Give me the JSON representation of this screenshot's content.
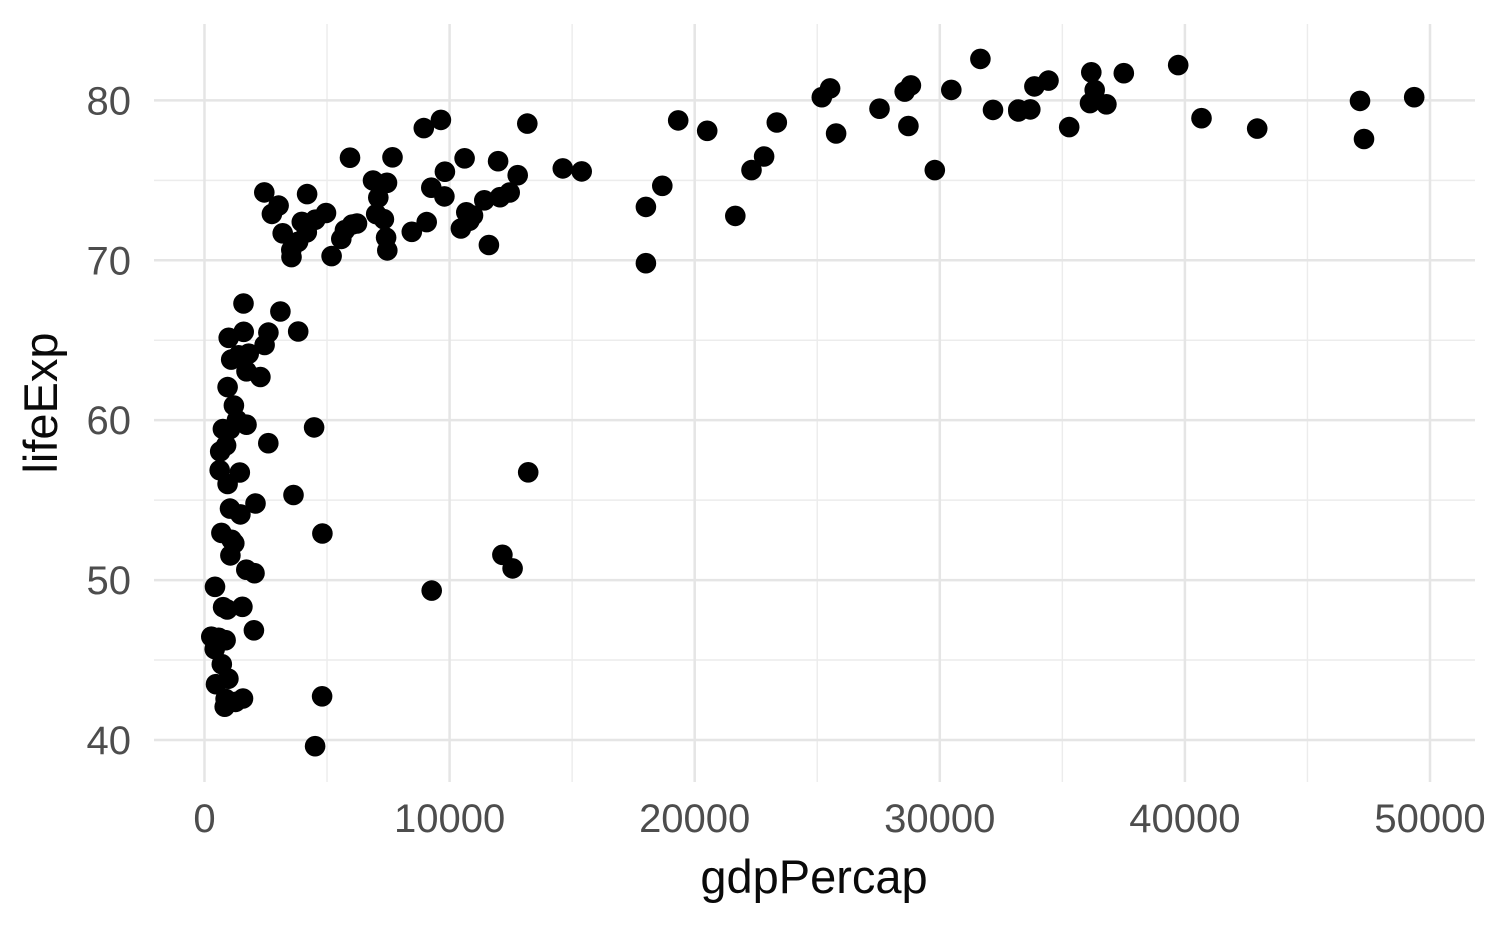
{
  "chart_data": {
    "type": "scatter",
    "title": "",
    "xlabel": "gdpPercap",
    "ylabel": "lifeExp",
    "legend_position": "none",
    "background": "#FFFFFF",
    "point_color": "#000000",
    "point_radius_px": 10.3,
    "grid_major_color": "#E5E5E5",
    "grid_minor_color": "#ECECEC",
    "tick_label_color": "#4D4D4D",
    "axis_title_color": "#0A0A0A",
    "x_ticks": [
      0,
      10000,
      20000,
      30000,
      40000,
      50000
    ],
    "x_tick_labels": [
      "0",
      "10000",
      "20000",
      "30000",
      "40000",
      "50000"
    ],
    "y_ticks": [
      40,
      50,
      60,
      70,
      80
    ],
    "y_tick_labels": [
      "40",
      "50",
      "60",
      "70",
      "80"
    ],
    "x_minor_ticks": [
      5000,
      15000,
      25000,
      35000,
      45000
    ],
    "y_minor_ticks": [
      45,
      55,
      65,
      75
    ],
    "xlim": [
      -2060,
      51836
    ],
    "ylim": [
      37.37,
      84.78
    ],
    "grid": "major and minor gridlines, no axis lines, no tick marks",
    "points": [
      [
        974.6,
        43.83
      ],
      [
        5937.0,
        76.42
      ],
      [
        6223.4,
        72.3
      ],
      [
        4797.2,
        42.73
      ],
      [
        12779.4,
        75.32
      ],
      [
        34435.4,
        81.24
      ],
      [
        36126.5,
        79.83
      ],
      [
        29796.0,
        75.64
      ],
      [
        1391.3,
        64.06
      ],
      [
        33692.6,
        79.44
      ],
      [
        1441.3,
        56.73
      ],
      [
        3822.1,
        65.55
      ],
      [
        7446.3,
        74.85
      ],
      [
        12569.9,
        50.73
      ],
      [
        9065.8,
        72.39
      ],
      [
        10680.8,
        73.0
      ],
      [
        1217.0,
        52.3
      ],
      [
        430.1,
        49.58
      ],
      [
        1713.8,
        59.72
      ],
      [
        2042.1,
        50.43
      ],
      [
        36319.2,
        80.65
      ],
      [
        706.0,
        44.74
      ],
      [
        1704.1,
        50.65
      ],
      [
        13171.6,
        78.55
      ],
      [
        4959.1,
        72.96
      ],
      [
        7006.6,
        72.89
      ],
      [
        986.1,
        65.15
      ],
      [
        277.6,
        46.46
      ],
      [
        3632.6,
        55.32
      ],
      [
        9645.1,
        78.78
      ],
      [
        1544.8,
        48.33
      ],
      [
        14619.2,
        75.75
      ],
      [
        8948.1,
        78.27
      ],
      [
        22833.3,
        76.49
      ],
      [
        35278.4,
        78.33
      ],
      [
        2082.5,
        54.79
      ],
      [
        6025.4,
        72.24
      ],
      [
        6873.3,
        74.99
      ],
      [
        5581.2,
        71.34
      ],
      [
        5728.4,
        71.88
      ],
      [
        12154.1,
        51.58
      ],
      [
        641.4,
        58.04
      ],
      [
        690.8,
        52.95
      ],
      [
        33207.1,
        79.31
      ],
      [
        30470.0,
        80.66
      ],
      [
        13206.5,
        56.74
      ],
      [
        752.7,
        59.45
      ],
      [
        32170.4,
        79.41
      ],
      [
        1327.6,
        60.02
      ],
      [
        27538.4,
        79.48
      ],
      [
        5186.1,
        70.26
      ],
      [
        942.7,
        56.01
      ],
      [
        579.2,
        46.39
      ],
      [
        1201.6,
        60.92
      ],
      [
        3548.3,
        70.2
      ],
      [
        39725.0,
        82.21
      ],
      [
        18008.9,
        73.34
      ],
      [
        36180.8,
        81.76
      ],
      [
        2452.2,
        64.7
      ],
      [
        3540.7,
        70.65
      ],
      [
        11605.7,
        70.96
      ],
      [
        4471.1,
        59.55
      ],
      [
        40676.0,
        78.89
      ],
      [
        25523.3,
        80.75
      ],
      [
        28569.7,
        80.55
      ],
      [
        7320.9,
        72.57
      ],
      [
        31656.1,
        82.6
      ],
      [
        4519.5,
        72.54
      ],
      [
        1463.2,
        54.11
      ],
      [
        1593.1,
        67.3
      ],
      [
        23348.1,
        78.62
      ],
      [
        47307.0,
        77.59
      ],
      [
        10461.1,
        71.99
      ],
      [
        1569.3,
        42.59
      ],
      [
        414.5,
        45.68
      ],
      [
        12057.5,
        73.95
      ],
      [
        1044.8,
        59.44
      ],
      [
        759.3,
        48.3
      ],
      [
        12451.7,
        74.24
      ],
      [
        1042.6,
        54.47
      ],
      [
        1803.2,
        64.16
      ],
      [
        10957.0,
        72.8
      ],
      [
        11977.6,
        76.2
      ],
      [
        3095.8,
        66.8
      ],
      [
        9253.9,
        74.54
      ],
      [
        3820.2,
        71.16
      ],
      [
        823.7,
        42.08
      ],
      [
        944.0,
        62.07
      ],
      [
        4811.1,
        52.91
      ],
      [
        1091.4,
        63.79
      ],
      [
        36797.9,
        79.76
      ],
      [
        25185.0,
        80.2
      ],
      [
        2749.3,
        72.9
      ],
      [
        619.7,
        56.87
      ],
      [
        2014.0,
        46.86
      ],
      [
        49357.2,
        80.2
      ],
      [
        22316.2,
        75.64
      ],
      [
        2606.0,
        65.48
      ],
      [
        9809.2,
        75.54
      ],
      [
        4172.8,
        71.75
      ],
      [
        7408.9,
        71.42
      ],
      [
        3190.5,
        71.69
      ],
      [
        15390.0,
        75.56
      ],
      [
        20509.6,
        78.1
      ],
      [
        19328.7,
        78.75
      ],
      [
        7670.1,
        76.44
      ],
      [
        10808.5,
        72.48
      ],
      [
        863.1,
        46.24
      ],
      [
        1598.4,
        65.53
      ],
      [
        21654.8,
        72.78
      ],
      [
        1712.5,
        63.06
      ],
      [
        9786.5,
        74.0
      ],
      [
        862.5,
        42.57
      ],
      [
        47143.2,
        79.97
      ],
      [
        18678.3,
        74.66
      ],
      [
        25768.3,
        77.93
      ],
      [
        926.1,
        48.16
      ],
      [
        9269.7,
        49.34
      ],
      [
        28821.1,
        80.94
      ],
      [
        3970.1,
        72.4
      ],
      [
        2602.4,
        58.56
      ],
      [
        4513.5,
        39.61
      ],
      [
        33859.7,
        80.88
      ],
      [
        37506.4,
        81.7
      ],
      [
        4184.6,
        74.14
      ],
      [
        28718.3,
        78.4
      ],
      [
        1107.5,
        52.52
      ],
      [
        7458.4,
        70.62
      ],
      [
        883.0,
        58.42
      ],
      [
        18008.5,
        69.82
      ],
      [
        7092.9,
        73.92
      ],
      [
        8458.3,
        71.78
      ],
      [
        1056.4,
        51.54
      ],
      [
        33203.3,
        79.43
      ],
      [
        42951.7,
        78.24
      ],
      [
        10611.5,
        76.38
      ],
      [
        11415.8,
        73.75
      ],
      [
        2441.6,
        74.25
      ],
      [
        3025.4,
        73.42
      ],
      [
        2280.8,
        62.7
      ],
      [
        1271.2,
        42.38
      ],
      [
        469.7,
        43.49
      ]
    ]
  }
}
